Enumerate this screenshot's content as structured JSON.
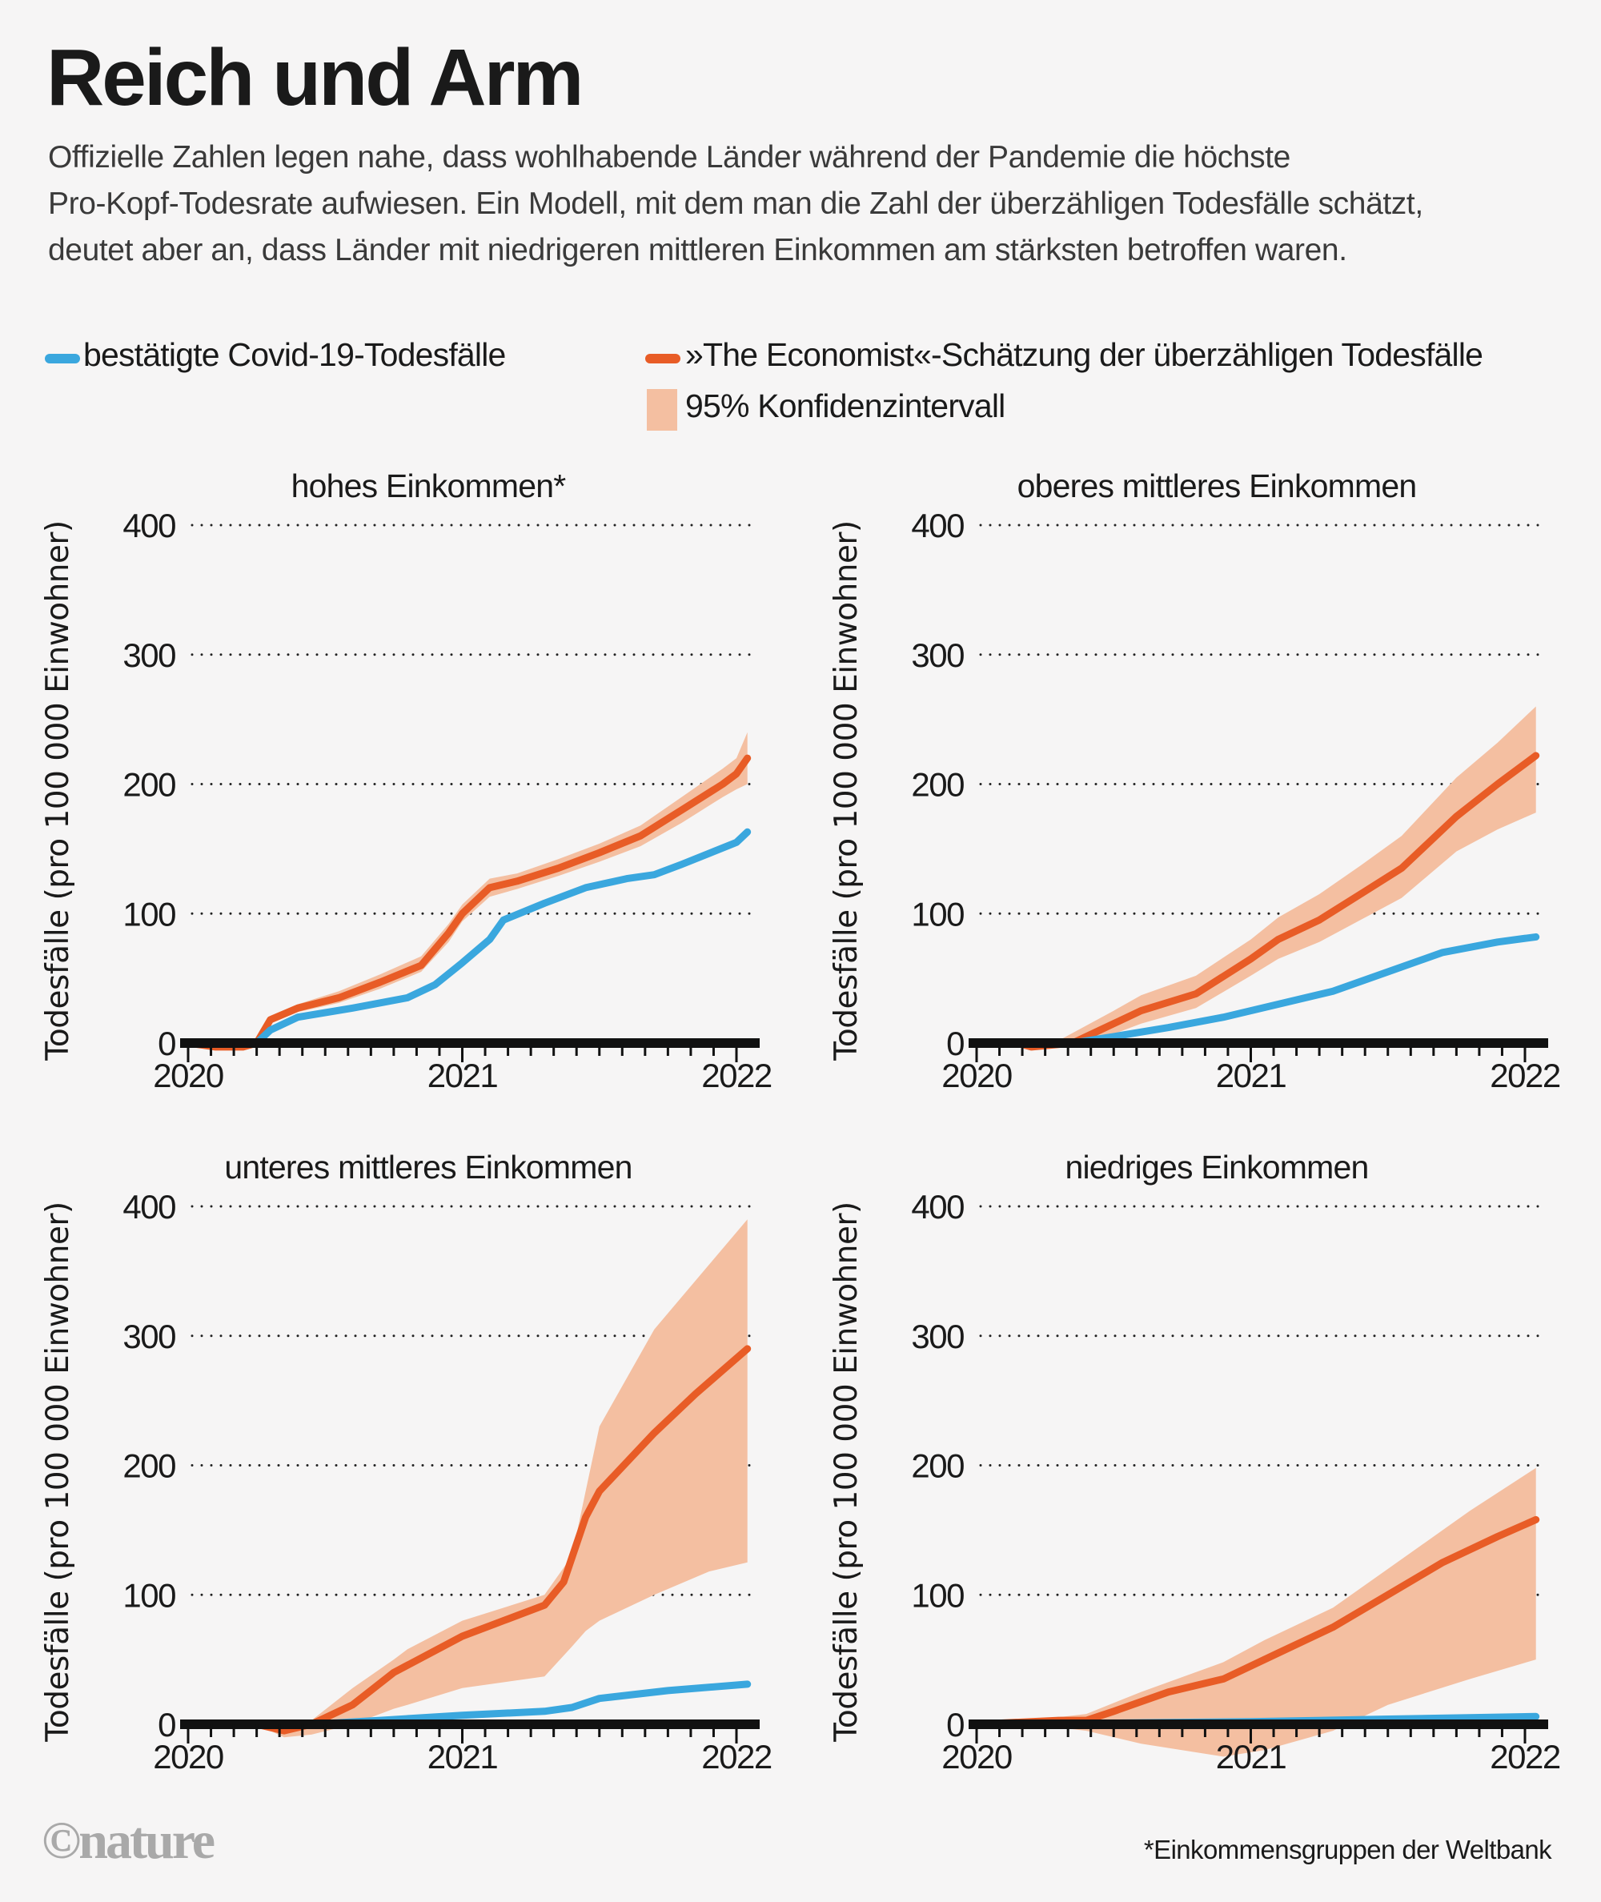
{
  "header": {
    "title": "Reich und Arm",
    "subtitle_lines": [
      "Offizielle Zahlen legen nahe, dass wohlhabende Länder während der Pandemie die höchste",
      "Pro-Kopf-Todesrate aufwiesen. Ein Modell, mit dem man die Zahl der überzähligen Todesfälle schätzt,",
      "deutet aber an, dass Länder mit niedrigeren mittleren Einkommen am stärksten betroffen waren."
    ]
  },
  "legend": {
    "confirmed": "bestätigte Covid-19-Todesfälle",
    "estimate": "»The Economist«-Schätzung der überzähligen Todesfälle",
    "ci": "95% Konfidenzintervall"
  },
  "colors": {
    "confirmed": "#3aa7de",
    "estimate": "#e85c26",
    "ci": "#f4bfa1",
    "axis": "#111111"
  },
  "footer": {
    "logo": "©nature",
    "note": "*Einkommensgruppen der Weltbank"
  },
  "chart_data": [
    {
      "type": "line",
      "title": "hohes Einkommen*",
      "ylabel": "Todesfälle (pro 100 000 Einwohner)",
      "xlabel": "",
      "xticks": [
        "2020",
        "2021",
        "2022"
      ],
      "yticks": [
        "0",
        "100",
        "200",
        "300",
        "400"
      ],
      "xlim": [
        2020,
        2022.1
      ],
      "ylim": [
        0,
        400
      ],
      "grid": true,
      "series": [
        {
          "name": "bestätigte Covid-19-Todesfälle",
          "x": [
            2020.0,
            2020.25,
            2020.3,
            2020.4,
            2020.6,
            2020.8,
            2020.9,
            2021.0,
            2021.1,
            2021.15,
            2021.3,
            2021.45,
            2021.6,
            2021.7,
            2021.8,
            2022.0,
            2022.04
          ],
          "y": [
            0,
            0,
            10,
            20,
            27,
            35,
            45,
            62,
            80,
            95,
            108,
            120,
            127,
            130,
            138,
            155,
            163
          ]
        },
        {
          "name": "»The Economist«-Schätzung",
          "x": [
            2020.0,
            2020.1,
            2020.2,
            2020.25,
            2020.3,
            2020.4,
            2020.55,
            2020.7,
            2020.85,
            2020.95,
            2021.0,
            2021.1,
            2021.2,
            2021.35,
            2021.5,
            2021.65,
            2021.8,
            2021.95,
            2022.0,
            2022.04
          ],
          "y": [
            0,
            -3,
            -3,
            0,
            18,
            27,
            35,
            47,
            60,
            85,
            100,
            120,
            125,
            135,
            147,
            160,
            180,
            200,
            208,
            220
          ]
        },
        {
          "name": "95% Konfidenzintervall",
          "x": [
            2020.25,
            2020.3,
            2020.4,
            2020.55,
            2020.7,
            2020.85,
            2020.95,
            2021.0,
            2021.1,
            2021.2,
            2021.35,
            2021.5,
            2021.65,
            2021.8,
            2021.95,
            2022.0,
            2022.04
          ],
          "lower": [
            0,
            15,
            24,
            31,
            42,
            55,
            78,
            94,
            113,
            119,
            129,
            140,
            152,
            170,
            190,
            196,
            200
          ],
          "upper": [
            0,
            21,
            30,
            40,
            53,
            67,
            92,
            107,
            127,
            131,
            142,
            154,
            168,
            190,
            212,
            220,
            240
          ]
        }
      ]
    },
    {
      "type": "line",
      "title": "oberes mittleres Einkommen",
      "ylabel": "Todesfälle (pro 100 000 Einwohner)",
      "xlabel": "",
      "xticks": [
        "2020",
        "2021",
        "2022"
      ],
      "yticks": [
        "0",
        "100",
        "200",
        "300",
        "400"
      ],
      "xlim": [
        2020,
        2022.1
      ],
      "ylim": [
        0,
        400
      ],
      "grid": true,
      "series": [
        {
          "name": "bestätigte Covid-19-Todesfälle",
          "x": [
            2020.0,
            2020.35,
            2020.5,
            2020.7,
            2020.9,
            2021.1,
            2021.3,
            2021.5,
            2021.7,
            2021.9,
            2022.04
          ],
          "y": [
            0,
            0,
            5,
            12,
            20,
            30,
            40,
            55,
            70,
            78,
            82
          ]
        },
        {
          "name": "»The Economist«-Schätzung",
          "x": [
            2020.0,
            2020.15,
            2020.2,
            2020.35,
            2020.5,
            2020.6,
            2020.8,
            2021.0,
            2021.1,
            2021.25,
            2021.4,
            2021.55,
            2021.75,
            2021.9,
            2022.04
          ],
          "y": [
            0,
            0,
            -3,
            0,
            15,
            25,
            38,
            65,
            80,
            95,
            115,
            135,
            175,
            200,
            222
          ]
        },
        {
          "name": "95% Konfidenzintervall",
          "x": [
            2020.3,
            2020.5,
            2020.6,
            2020.8,
            2021.0,
            2021.1,
            2021.25,
            2021.4,
            2021.55,
            2021.75,
            2021.9,
            2022.04
          ],
          "lower": [
            0,
            7,
            15,
            27,
            52,
            65,
            78,
            95,
            112,
            148,
            165,
            178
          ],
          "upper": [
            2,
            25,
            37,
            52,
            80,
            97,
            115,
            137,
            160,
            205,
            232,
            260
          ]
        }
      ]
    },
    {
      "type": "line",
      "title": "unteres mittleres Einkommen",
      "ylabel": "Todesfälle (pro 100 000 Einwohner)",
      "xlabel": "",
      "xticks": [
        "2020",
        "2021",
        "2022"
      ],
      "yticks": [
        "0",
        "100",
        "200",
        "300",
        "400"
      ],
      "xlim": [
        2020,
        2022.1
      ],
      "ylim": [
        0,
        400
      ],
      "grid": true,
      "series": [
        {
          "name": "bestätigte Covid-19-Todesfälle",
          "x": [
            2020.0,
            2020.45,
            2020.7,
            2021.0,
            2021.3,
            2021.4,
            2021.5,
            2021.75,
            2022.04
          ],
          "y": [
            0,
            0,
            3,
            7,
            10,
            13,
            20,
            26,
            31
          ]
        },
        {
          "name": "»The Economist«-Schätzung",
          "x": [
            2020.0,
            2020.25,
            2020.35,
            2020.45,
            2020.6,
            2020.75,
            2021.0,
            2021.15,
            2021.3,
            2021.37,
            2021.45,
            2021.5,
            2021.7,
            2021.85,
            2022.04
          ],
          "y": [
            0,
            0,
            -5,
            0,
            15,
            40,
            68,
            80,
            92,
            110,
            160,
            180,
            225,
            255,
            290
          ]
        },
        {
          "name": "95% Konfidenzintervall",
          "x": [
            2020.25,
            2020.35,
            2020.45,
            2020.6,
            2020.75,
            2020.8,
            2021.0,
            2021.3,
            2021.4,
            2021.45,
            2021.5,
            2021.7,
            2021.9,
            2022.04
          ],
          "lower": [
            0,
            -10,
            -8,
            0,
            12,
            15,
            28,
            37,
            60,
            72,
            80,
            100,
            118,
            125
          ],
          "upper": [
            0,
            0,
            3,
            28,
            50,
            58,
            80,
            100,
            130,
            180,
            230,
            305,
            355,
            390
          ]
        }
      ]
    },
    {
      "type": "line",
      "title": "niedriges Einkommen",
      "ylabel": "Todesfälle (pro 100 000 Einwohner)",
      "xlabel": "",
      "xticks": [
        "2020",
        "2021",
        "2022"
      ],
      "yticks": [
        "0",
        "100",
        "200",
        "300",
        "400"
      ],
      "xlim": [
        2020,
        2022.1
      ],
      "ylim": [
        0,
        400
      ],
      "grid": true,
      "series": [
        {
          "name": "bestätigte Covid-19-Todesfälle",
          "x": [
            2020.0,
            2020.5,
            2021.0,
            2021.5,
            2022.04
          ],
          "y": [
            0,
            1,
            2,
            4,
            6
          ]
        },
        {
          "name": "»The Economist«-Schätzung",
          "x": [
            2020.0,
            2020.3,
            2020.4,
            2020.5,
            2020.7,
            2020.9,
            2021.1,
            2021.3,
            2021.5,
            2021.7,
            2021.9,
            2022.04
          ],
          "y": [
            0,
            3,
            3,
            10,
            25,
            35,
            55,
            75,
            100,
            125,
            145,
            158
          ]
        },
        {
          "name": "95% Konfidenzintervall",
          "x": [
            2020.2,
            2020.4,
            2020.6,
            2020.9,
            2021.05,
            2021.3,
            2021.5,
            2021.8,
            2022.04
          ],
          "lower": [
            0,
            -5,
            -15,
            -25,
            -20,
            -5,
            15,
            35,
            50
          ],
          "upper": [
            3,
            8,
            25,
            48,
            65,
            90,
            120,
            165,
            198
          ]
        }
      ]
    }
  ]
}
